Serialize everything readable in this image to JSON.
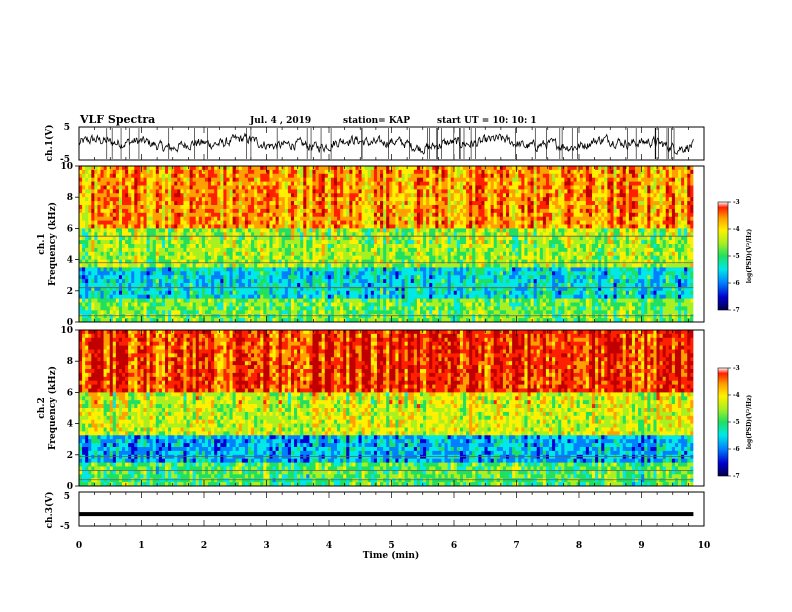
{
  "header": {
    "title": "VLF Spectra",
    "date": "Jul. 4 , 2019",
    "station": "station= KAP",
    "start_ut": "start UT =   10: 10: 1"
  },
  "colors": {
    "colormap": [
      "#00004a",
      "#0000d0",
      "#0080ff",
      "#00e8e8",
      "#20e060",
      "#a8f020",
      "#fff000",
      "#ffa000",
      "#ff2000",
      "#c00000"
    ],
    "trace": "#000000",
    "axis": "#000000"
  },
  "chart_data": [
    {
      "type": "line",
      "name": "ch1-waveform",
      "ylabel": "ch.1(V)",
      "yticks": [
        "5",
        "-5"
      ],
      "ylim": [
        -5,
        5
      ],
      "x_range_min": [
        0,
        9.83
      ],
      "note_values": "noisy trace, fluctuates roughly between -4 and 4 V around 0"
    },
    {
      "type": "heatmap",
      "name": "ch1-spectrogram",
      "ylabel": "ch.1 Frequency (kHz)",
      "yticks": [
        "0",
        "2",
        "4",
        "6",
        "8",
        "10"
      ],
      "ylim": [
        0,
        10
      ],
      "x_range_min": [
        0,
        9.83
      ],
      "colorbar": {
        "label": "log(PSD)(V²/Hz)",
        "ticks": [
          "-3",
          "-4",
          "-5",
          "-6",
          "-7"
        ],
        "range": [
          -7,
          -3
        ]
      },
      "bands": [
        {
          "f_low": 0,
          "f_high": 1.5,
          "log_psd": -5.0
        },
        {
          "f_low": 1.5,
          "f_high": 3.5,
          "log_psd": -5.6
        },
        {
          "f_low": 3.5,
          "f_high": 6.0,
          "log_psd": -4.8
        },
        {
          "f_low": 6.0,
          "f_high": 10.0,
          "log_psd": -4.0
        }
      ],
      "lines_khz": [
        0.4,
        2.2,
        3.8,
        5.5
      ]
    },
    {
      "type": "heatmap",
      "name": "ch2-spectrogram",
      "ylabel": "ch.2 Frequency (kHz)",
      "yticks": [
        "0",
        "2",
        "4",
        "6",
        "8",
        "10"
      ],
      "ylim": [
        0,
        10
      ],
      "x_range_min": [
        0,
        9.83
      ],
      "colorbar": {
        "label": "log(PSD)(V²/Hz)",
        "ticks": [
          "-3",
          "-4",
          "-5",
          "-6",
          "-7"
        ],
        "range": [
          -7,
          -3
        ]
      },
      "bands": [
        {
          "f_low": 0,
          "f_high": 1.5,
          "log_psd": -5.1
        },
        {
          "f_low": 1.5,
          "f_high": 3.2,
          "log_psd": -5.8
        },
        {
          "f_low": 3.2,
          "f_high": 6.0,
          "log_psd": -4.6
        },
        {
          "f_low": 6.0,
          "f_high": 10.0,
          "log_psd": -3.6
        }
      ],
      "lines_khz": [
        0.4,
        1.0,
        1.9
      ]
    },
    {
      "type": "line",
      "name": "ch3-waveform",
      "ylabel": "ch.3(V)",
      "yticks": [
        "5",
        "-5"
      ],
      "ylim": [
        -5,
        5
      ],
      "x_range_min": [
        0,
        9.83
      ],
      "constant_value": -1.5
    }
  ],
  "xaxis": {
    "label": "Time (min)",
    "ticks": [
      "0",
      "1",
      "2",
      "3",
      "4",
      "5",
      "6",
      "7",
      "8",
      "9",
      "10"
    ],
    "range": [
      0,
      10
    ]
  }
}
